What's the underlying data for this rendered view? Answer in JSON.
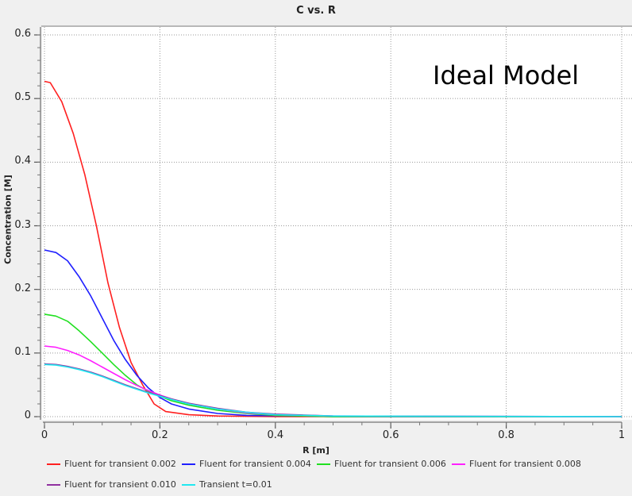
{
  "chart_data": {
    "type": "line",
    "title": "C vs. R",
    "xlabel": "R [m]",
    "ylabel": "Concentration [M]",
    "xlim": [
      0,
      1
    ],
    "ylim": [
      0,
      0.6
    ],
    "x_ticks": [
      "0",
      "0.2",
      "0.4",
      "0.6",
      "0.8",
      "1"
    ],
    "y_ticks": [
      "0",
      "0.1",
      "0.2",
      "0.3",
      "0.4",
      "0.5",
      "0.6"
    ],
    "grid": true,
    "legend_position": "bottom",
    "annotation": "Ideal Model",
    "series": [
      {
        "name": "Fluent for transient 0.002",
        "color": "#ff2020",
        "x": [
          0,
          0.01,
          0.03,
          0.05,
          0.07,
          0.09,
          0.11,
          0.13,
          0.15,
          0.17,
          0.19,
          0.21,
          0.25,
          0.3,
          0.4,
          1
        ],
        "y": [
          0.527,
          0.525,
          0.495,
          0.445,
          0.38,
          0.3,
          0.21,
          0.14,
          0.085,
          0.05,
          0.02,
          0.008,
          0.003,
          0.001,
          0,
          0
        ]
      },
      {
        "name": "Fluent for transient 0.004",
        "color": "#2020ff",
        "x": [
          0,
          0.02,
          0.04,
          0.06,
          0.08,
          0.1,
          0.12,
          0.14,
          0.16,
          0.18,
          0.2,
          0.22,
          0.25,
          0.3,
          0.35,
          0.45,
          0.5,
          1
        ],
        "y": [
          0.262,
          0.258,
          0.245,
          0.22,
          0.19,
          0.155,
          0.12,
          0.09,
          0.065,
          0.045,
          0.03,
          0.02,
          0.012,
          0.005,
          0.002,
          0.001,
          0,
          0
        ]
      },
      {
        "name": "Fluent for transient 0.006",
        "color": "#20e020",
        "x": [
          0,
          0.02,
          0.04,
          0.06,
          0.08,
          0.1,
          0.12,
          0.14,
          0.16,
          0.18,
          0.2,
          0.22,
          0.25,
          0.3,
          0.35,
          0.4,
          0.5,
          1
        ],
        "y": [
          0.161,
          0.158,
          0.15,
          0.135,
          0.118,
          0.1,
          0.082,
          0.065,
          0.05,
          0.04,
          0.032,
          0.025,
          0.018,
          0.01,
          0.005,
          0.002,
          0,
          0
        ]
      },
      {
        "name": "Fluent for transient 0.008",
        "color": "#ff20ff",
        "x": [
          0,
          0.02,
          0.04,
          0.06,
          0.08,
          0.1,
          0.12,
          0.14,
          0.16,
          0.18,
          0.2,
          0.22,
          0.25,
          0.3,
          0.35,
          0.4,
          0.5,
          1
        ],
        "y": [
          0.111,
          0.109,
          0.104,
          0.097,
          0.088,
          0.078,
          0.068,
          0.058,
          0.049,
          0.041,
          0.034,
          0.028,
          0.02,
          0.012,
          0.006,
          0.003,
          0.001,
          0
        ]
      },
      {
        "name": "Fluent for transient 0.010",
        "color": "#9030a0",
        "x": [
          0,
          0.02,
          0.04,
          0.06,
          0.08,
          0.1,
          0.12,
          0.14,
          0.16,
          0.18,
          0.2,
          0.22,
          0.25,
          0.3,
          0.35,
          0.4,
          0.5,
          1
        ],
        "y": [
          0.083,
          0.082,
          0.079,
          0.075,
          0.07,
          0.064,
          0.057,
          0.05,
          0.044,
          0.038,
          0.033,
          0.028,
          0.021,
          0.013,
          0.007,
          0.004,
          0.001,
          0
        ]
      },
      {
        "name": "Transient t=0.01",
        "color": "#20e8f0",
        "x": [
          0,
          0.02,
          0.04,
          0.06,
          0.08,
          0.1,
          0.12,
          0.14,
          0.16,
          0.18,
          0.2,
          0.22,
          0.25,
          0.3,
          0.35,
          0.4,
          0.5,
          1
        ],
        "y": [
          0.082,
          0.081,
          0.078,
          0.074,
          0.069,
          0.063,
          0.056,
          0.049,
          0.043,
          0.037,
          0.032,
          0.027,
          0.02,
          0.012,
          0.007,
          0.003,
          0.001,
          0
        ]
      }
    ]
  }
}
